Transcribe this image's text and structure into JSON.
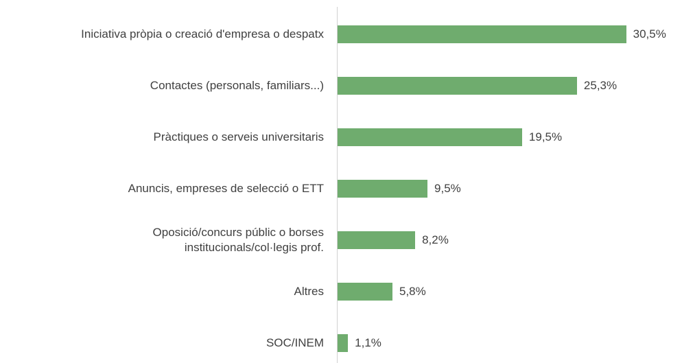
{
  "chart_data": {
    "type": "bar",
    "orientation": "horizontal",
    "categories": [
      "Iniciativa pròpia o creació d'empresa o despatx",
      "Contactes (personals, familiars...)",
      "Pràctiques o serveis universitaris",
      "Anuncis, empreses de selecció o ETT",
      "Oposició/concurs públic o borses\ninstitucionals/col·legis prof.",
      "Altres",
      "SOC/INEM"
    ],
    "values": [
      30.5,
      25.3,
      19.5,
      9.5,
      8.2,
      5.8,
      1.1
    ],
    "value_labels": [
      "30,5%",
      "25,3%",
      "19,5%",
      "9,5%",
      "8,2%",
      "5,8%",
      "1,1%"
    ],
    "color": "#6fac6e",
    "xlim": [
      0,
      36.4
    ]
  }
}
